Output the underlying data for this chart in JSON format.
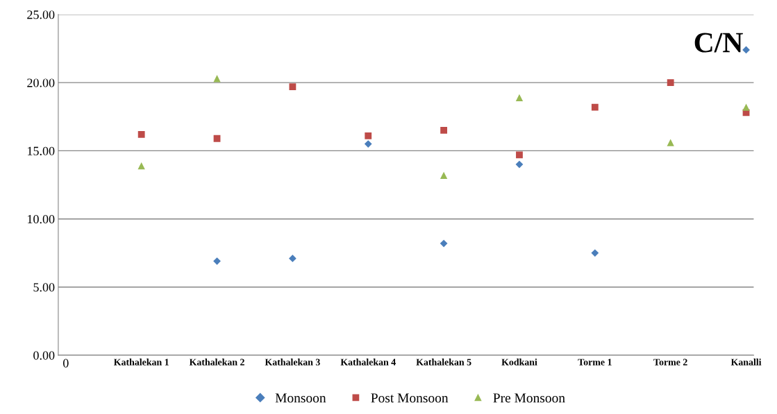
{
  "chart_data": {
    "type": "scatter",
    "categories": [
      "0",
      "Kathalekan 1",
      "Kathalekan 2",
      "Kathalekan 3",
      "Kathalekan 4",
      "Kathalekan 5",
      "Kodkani",
      "Torme 1",
      "Torme 2",
      "Kanalli"
    ],
    "series": [
      {
        "name": "Monsoon",
        "color": "#4a7ebb",
        "marker": "diamond",
        "values": [
          null,
          null,
          6.9,
          7.1,
          15.5,
          8.2,
          14.0,
          7.5,
          null,
          22.4
        ]
      },
      {
        "name": "Post Monsoon",
        "color": "#be4b48",
        "marker": "square",
        "values": [
          null,
          16.2,
          15.9,
          19.7,
          16.1,
          16.5,
          14.7,
          18.2,
          20.0,
          17.8
        ]
      },
      {
        "name": "Pre Monsoon",
        "color": "#98b954",
        "marker": "triangle",
        "values": [
          null,
          13.9,
          20.3,
          null,
          null,
          13.2,
          18.9,
          null,
          15.6,
          18.2
        ]
      }
    ],
    "ylim": [
      0,
      25
    ],
    "yticks": [
      {
        "value": 0,
        "label": "0.00"
      },
      {
        "value": 5,
        "label": "5.00"
      },
      {
        "value": 10,
        "label": "10.00"
      },
      {
        "value": 15,
        "label": "15.00"
      },
      {
        "value": 20,
        "label": "20.00"
      },
      {
        "value": 25,
        "label": "25.00"
      }
    ],
    "annotations": [
      "C/N"
    ],
    "grid": "y",
    "legend": "bottom"
  }
}
